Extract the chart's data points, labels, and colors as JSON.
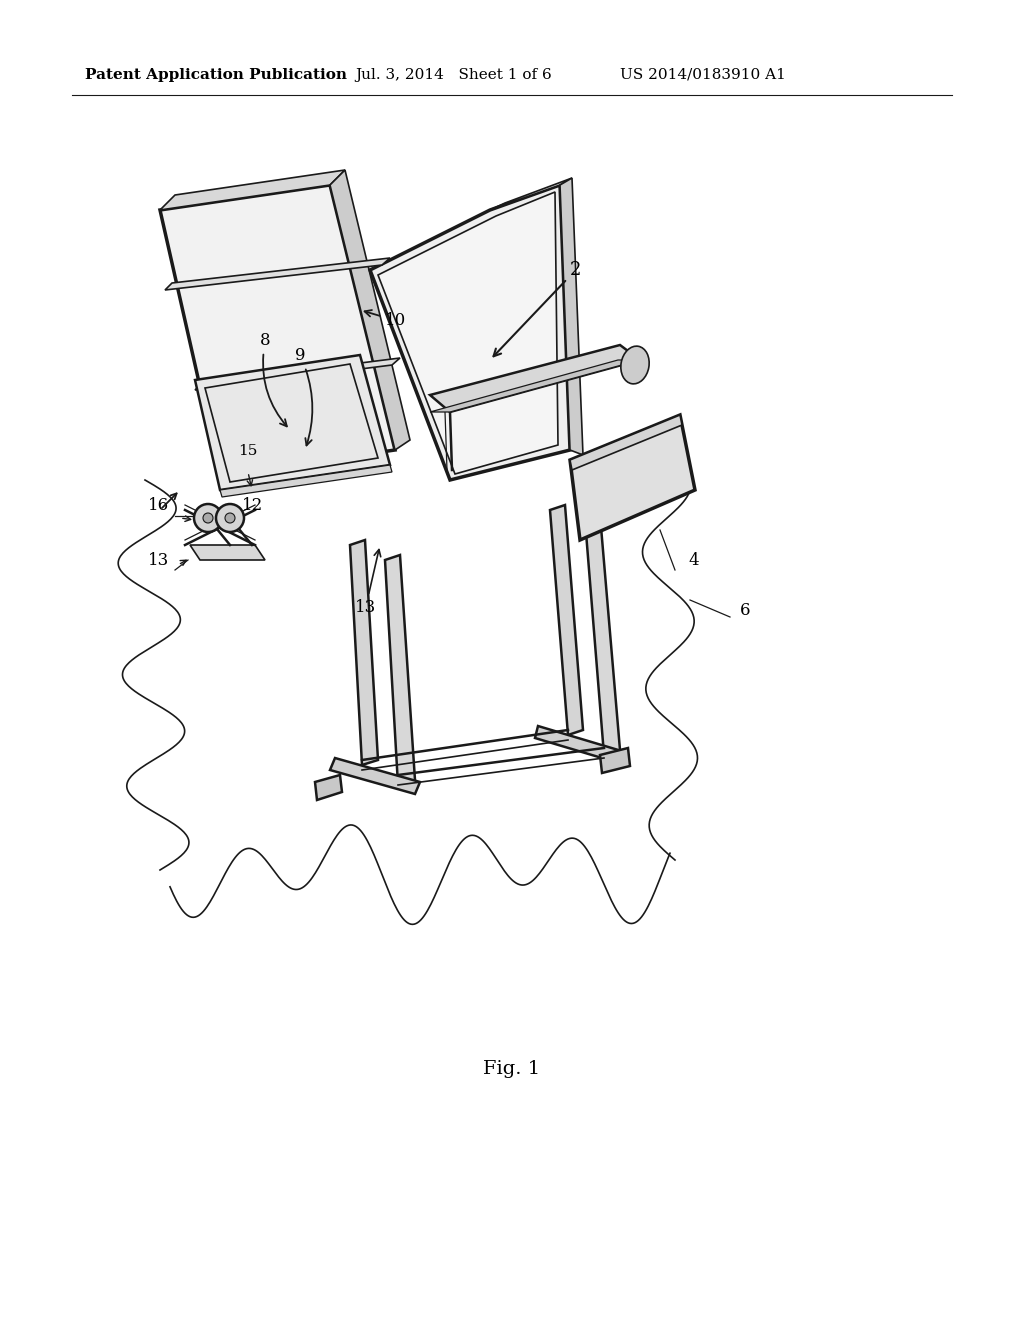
{
  "header_left": "Patent Application Publication",
  "header_mid": "Jul. 3, 2014   Sheet 1 of 6",
  "header_right": "US 2014/0183910 A1",
  "fig_label": "Fig. 1",
  "bg_color": "#ffffff",
  "text_color": "#000000",
  "header_fontsize": 11,
  "fig_label_fontsize": 14
}
